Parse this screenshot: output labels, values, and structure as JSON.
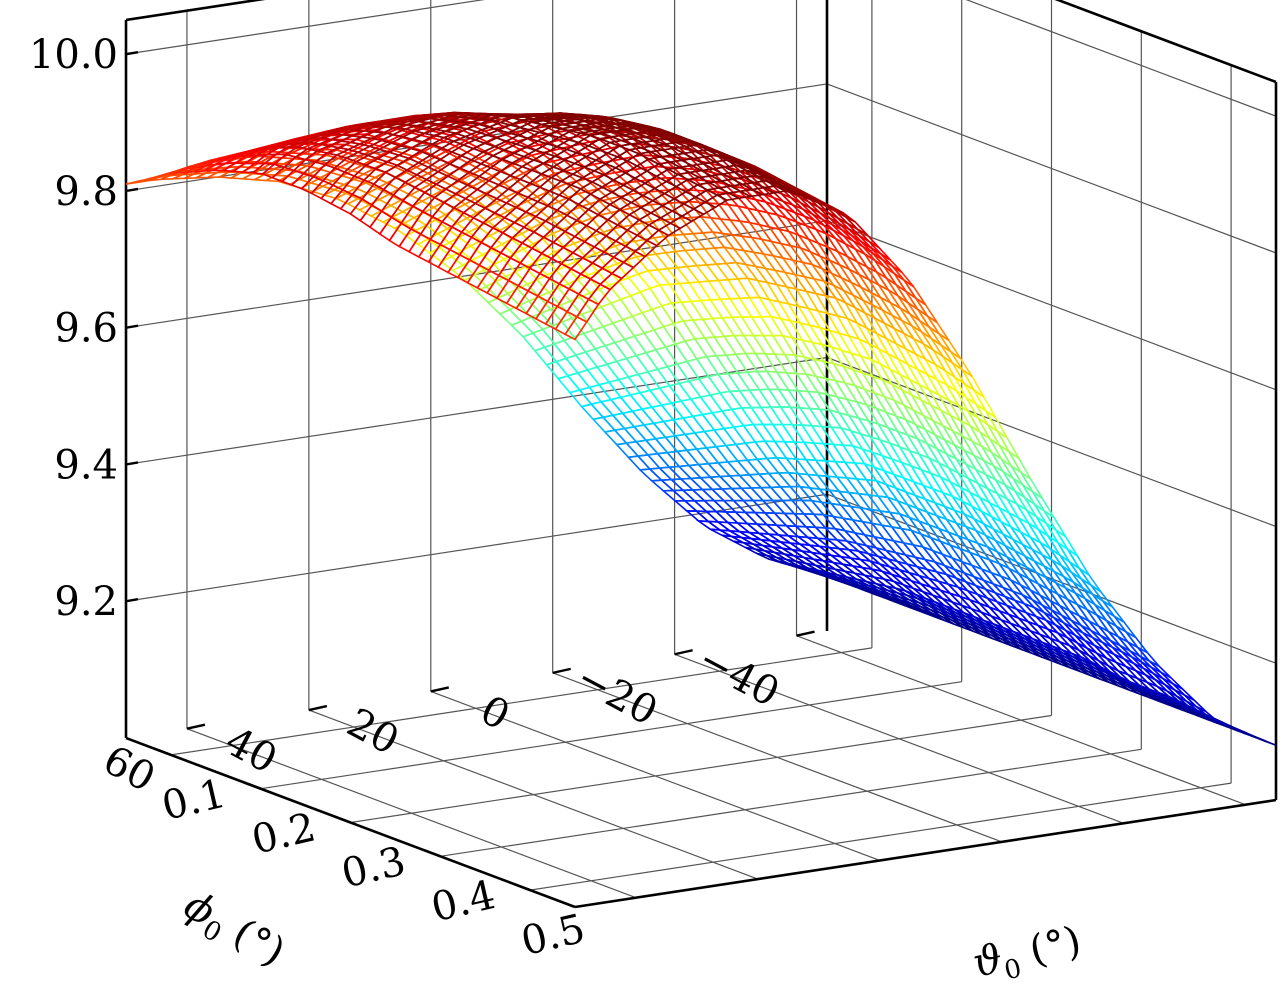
{
  "chart_data": {
    "type": "surface",
    "title": "",
    "xlabel": {
      "symbol": "ϑ",
      "sub": "0",
      "unit": " (°)"
    },
    "ylabel": {
      "symbol": "ϕ",
      "sub": "0",
      "unit": " (°)"
    },
    "zlabel": "",
    "xlim": [
      0.05,
      0.55
    ],
    "ylim": [
      -45,
      70
    ],
    "zlim": [
      9.0,
      10.05
    ],
    "x_ticks": [
      0.1,
      0.2,
      0.3,
      0.4,
      0.5
    ],
    "x_tick_labels": [
      "0.1",
      "0.2",
      "0.3",
      "0.4",
      "0.5"
    ],
    "y_ticks": [
      -40,
      -20,
      0,
      20,
      40,
      60
    ],
    "y_tick_labels": [
      "−40",
      "−20",
      "0",
      "20",
      "40",
      "60"
    ],
    "z_ticks": [
      9.2,
      9.4,
      9.6,
      9.8,
      10.0
    ],
    "z_tick_labels": [
      "9.2",
      "9.4",
      "9.6",
      "9.8",
      "10.0"
    ],
    "grid": true,
    "colormap": "jet",
    "x_grid": [
      0.05,
      0.1,
      0.15,
      0.2,
      0.25,
      0.3,
      0.35,
      0.4,
      0.45,
      0.5,
      0.55
    ],
    "y_grid": [
      -45,
      -35,
      -25,
      -15,
      -5,
      5,
      15,
      25,
      35,
      45,
      55,
      65,
      70
    ],
    "z_values": [
      [
        9.08,
        9.12,
        9.18,
        9.27,
        9.38,
        9.5,
        9.6,
        9.68,
        9.74,
        9.78,
        9.8,
        9.81,
        9.81
      ],
      [
        9.08,
        9.13,
        9.2,
        9.3,
        9.42,
        9.55,
        9.66,
        9.74,
        9.8,
        9.84,
        9.86,
        9.86,
        9.85
      ],
      [
        9.08,
        9.14,
        9.22,
        9.33,
        9.46,
        9.6,
        9.72,
        9.8,
        9.86,
        9.9,
        9.91,
        9.9,
        9.88
      ],
      [
        9.08,
        9.15,
        9.24,
        9.36,
        9.5,
        9.65,
        9.77,
        9.86,
        9.92,
        9.95,
        9.95,
        9.93,
        9.9
      ],
      [
        9.08,
        9.15,
        9.25,
        9.38,
        9.53,
        9.68,
        9.81,
        9.9,
        9.96,
        9.98,
        9.97,
        9.94,
        9.9
      ],
      [
        9.08,
        9.15,
        9.26,
        9.4,
        9.55,
        9.71,
        9.84,
        9.94,
        9.99,
        10.0,
        9.98,
        9.94,
        9.89
      ],
      [
        9.08,
        9.15,
        9.26,
        9.4,
        9.56,
        9.72,
        9.86,
        9.96,
        10.01,
        10.01,
        9.98,
        9.93,
        9.87
      ],
      [
        9.08,
        9.15,
        9.26,
        9.4,
        9.56,
        9.73,
        9.87,
        9.97,
        10.02,
        10.02,
        9.98,
        9.92,
        9.86
      ],
      [
        9.08,
        9.14,
        9.25,
        9.39,
        9.55,
        9.72,
        9.87,
        9.97,
        10.02,
        10.02,
        9.98,
        9.91,
        9.85
      ],
      [
        9.08,
        9.14,
        9.24,
        9.38,
        9.54,
        9.71,
        9.86,
        9.96,
        10.01,
        10.01,
        9.97,
        9.9,
        9.84
      ],
      [
        9.08,
        9.13,
        9.23,
        9.36,
        9.52,
        9.69,
        9.84,
        9.95,
        10.0,
        10.0,
        9.96,
        9.89,
        9.83
      ]
    ],
    "colors": {
      "background": "#ffffff",
      "box": "#000000",
      "grid": "#555555"
    }
  }
}
